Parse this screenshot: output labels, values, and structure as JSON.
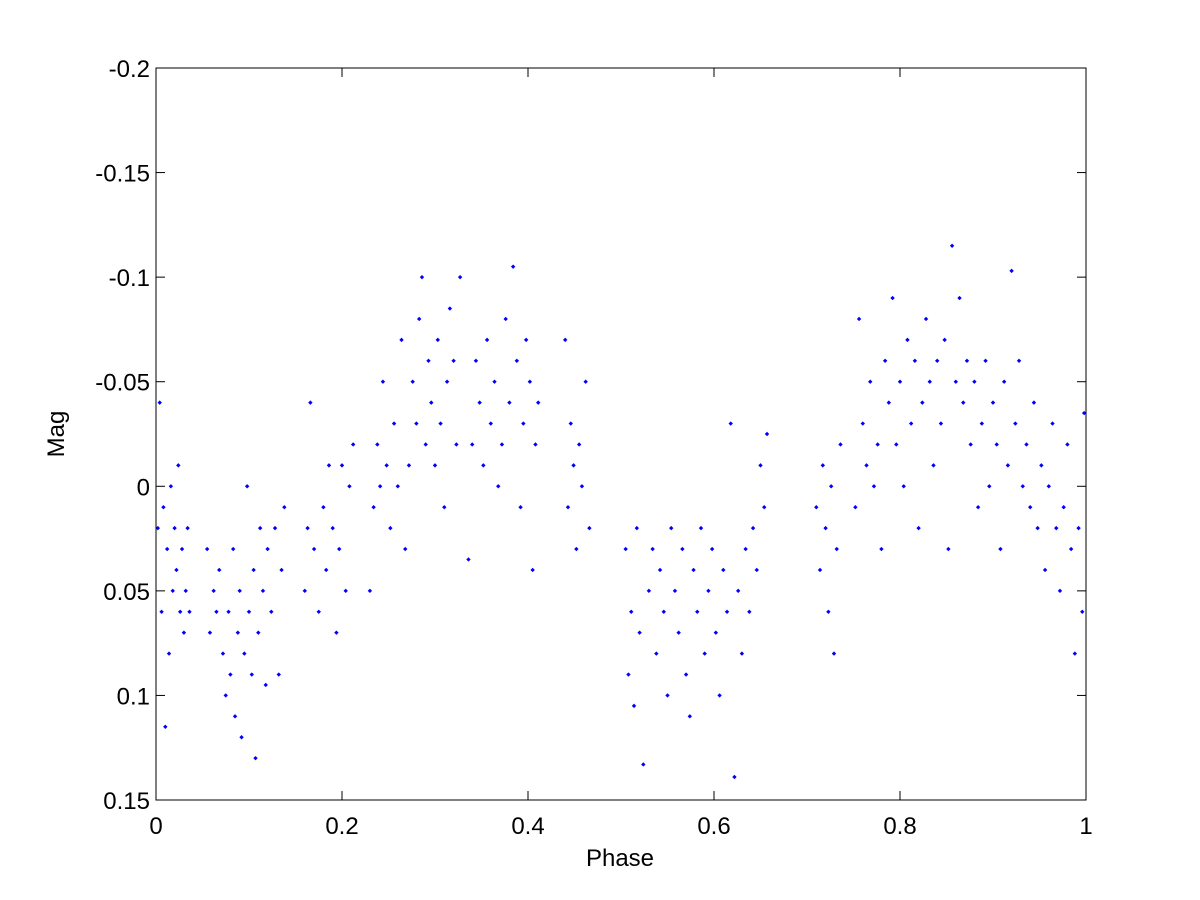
{
  "chart_data": {
    "type": "scatter",
    "xlabel": "Phase",
    "ylabel": "Mag",
    "color": "#0000ff",
    "y_reversed": true,
    "xlim": [
      0,
      1
    ],
    "ylim": [
      -0.2,
      0.15
    ],
    "xticks": [
      0,
      0.2,
      0.4,
      0.6,
      0.8,
      1
    ],
    "yticks": [
      -0.2,
      -0.15,
      -0.1,
      -0.05,
      0,
      0.05,
      0.1,
      0.15
    ],
    "x": [
      0.002,
      0.004,
      0.006,
      0.008,
      0.01,
      0.012,
      0.014,
      0.016,
      0.018,
      0.02,
      0.022,
      0.024,
      0.026,
      0.028,
      0.03,
      0.032,
      0.034,
      0.036,
      0.055,
      0.058,
      0.062,
      0.065,
      0.068,
      0.072,
      0.075,
      0.078,
      0.08,
      0.083,
      0.085,
      0.088,
      0.09,
      0.092,
      0.095,
      0.098,
      0.1,
      0.103,
      0.105,
      0.107,
      0.11,
      0.112,
      0.115,
      0.118,
      0.12,
      0.124,
      0.128,
      0.132,
      0.135,
      0.138,
      0.16,
      0.163,
      0.166,
      0.17,
      0.175,
      0.18,
      0.183,
      0.186,
      0.19,
      0.194,
      0.197,
      0.2,
      0.204,
      0.208,
      0.212,
      0.23,
      0.234,
      0.238,
      0.241,
      0.244,
      0.248,
      0.252,
      0.256,
      0.26,
      0.264,
      0.268,
      0.272,
      0.276,
      0.28,
      0.283,
      0.286,
      0.29,
      0.293,
      0.296,
      0.3,
      0.303,
      0.306,
      0.31,
      0.313,
      0.316,
      0.32,
      0.323,
      0.327,
      0.336,
      0.34,
      0.344,
      0.348,
      0.352,
      0.356,
      0.36,
      0.364,
      0.368,
      0.372,
      0.376,
      0.38,
      0.384,
      0.388,
      0.392,
      0.395,
      0.398,
      0.402,
      0.405,
      0.408,
      0.411,
      0.44,
      0.443,
      0.446,
      0.449,
      0.452,
      0.455,
      0.458,
      0.462,
      0.466,
      0.505,
      0.508,
      0.511,
      0.514,
      0.517,
      0.52,
      0.524,
      0.53,
      0.534,
      0.538,
      0.542,
      0.546,
      0.55,
      0.554,
      0.558,
      0.562,
      0.566,
      0.57,
      0.574,
      0.578,
      0.582,
      0.586,
      0.59,
      0.594,
      0.598,
      0.602,
      0.606,
      0.61,
      0.614,
      0.618,
      0.622,
      0.626,
      0.63,
      0.634,
      0.638,
      0.642,
      0.646,
      0.65,
      0.654,
      0.657,
      0.71,
      0.714,
      0.717,
      0.72,
      0.723,
      0.726,
      0.729,
      0.732,
      0.736,
      0.752,
      0.756,
      0.76,
      0.764,
      0.768,
      0.772,
      0.776,
      0.78,
      0.784,
      0.788,
      0.792,
      0.796,
      0.8,
      0.804,
      0.808,
      0.812,
      0.816,
      0.82,
      0.824,
      0.828,
      0.832,
      0.836,
      0.84,
      0.844,
      0.848,
      0.852,
      0.856,
      0.86,
      0.864,
      0.868,
      0.872,
      0.876,
      0.88,
      0.884,
      0.888,
      0.892,
      0.896,
      0.9,
      0.904,
      0.908,
      0.912,
      0.916,
      0.92,
      0.924,
      0.928,
      0.932,
      0.936,
      0.94,
      0.944,
      0.948,
      0.952,
      0.956,
      0.96,
      0.964,
      0.968,
      0.972,
      0.976,
      0.98,
      0.984,
      0.988,
      0.992,
      0.996,
      0.998
    ],
    "values": [
      0.02,
      -0.04,
      0.06,
      0.01,
      0.115,
      0.03,
      0.08,
      0.0,
      0.05,
      0.02,
      0.04,
      -0.01,
      0.06,
      0.03,
      0.07,
      0.05,
      0.02,
      0.06,
      0.03,
      0.07,
      0.05,
      0.06,
      0.04,
      0.08,
      0.1,
      0.06,
      0.09,
      0.03,
      0.11,
      0.07,
      0.05,
      0.12,
      0.08,
      0.0,
      0.06,
      0.09,
      0.04,
      0.13,
      0.07,
      0.02,
      0.05,
      0.095,
      0.03,
      0.06,
      0.02,
      0.09,
      0.04,
      0.01,
      0.05,
      0.02,
      -0.04,
      0.03,
      0.06,
      0.01,
      0.04,
      -0.01,
      0.02,
      0.07,
      0.03,
      -0.01,
      0.05,
      0.0,
      -0.02,
      0.05,
      0.01,
      -0.02,
      0.0,
      -0.05,
      -0.01,
      0.02,
      -0.03,
      0.0,
      -0.07,
      0.03,
      -0.01,
      -0.05,
      -0.03,
      -0.08,
      -0.1,
      -0.02,
      -0.06,
      -0.04,
      -0.01,
      -0.07,
      -0.03,
      0.01,
      -0.05,
      -0.085,
      -0.06,
      -0.02,
      -0.1,
      0.035,
      -0.02,
      -0.06,
      -0.04,
      -0.01,
      -0.07,
      -0.03,
      -0.05,
      0.0,
      -0.02,
      -0.08,
      -0.04,
      -0.105,
      -0.06,
      0.01,
      -0.03,
      -0.07,
      -0.05,
      0.04,
      -0.02,
      -0.04,
      -0.07,
      0.01,
      -0.03,
      -0.01,
      0.03,
      -0.02,
      0.0,
      -0.05,
      0.02,
      0.03,
      0.09,
      0.06,
      0.105,
      0.02,
      0.07,
      0.133,
      0.05,
      0.03,
      0.08,
      0.04,
      0.06,
      0.1,
      0.02,
      0.05,
      0.07,
      0.03,
      0.09,
      0.11,
      0.04,
      0.06,
      0.02,
      0.08,
      0.05,
      0.03,
      0.07,
      0.1,
      0.04,
      0.06,
      -0.03,
      0.139,
      0.05,
      0.08,
      0.03,
      0.06,
      0.02,
      0.04,
      -0.01,
      0.01,
      -0.025,
      0.01,
      0.04,
      -0.01,
      0.02,
      0.06,
      0.0,
      0.08,
      0.03,
      -0.02,
      0.01,
      -0.08,
      -0.03,
      -0.01,
      -0.05,
      0.0,
      -0.02,
      0.03,
      -0.06,
      -0.04,
      -0.09,
      -0.02,
      -0.05,
      0.0,
      -0.07,
      -0.03,
      -0.06,
      0.02,
      -0.04,
      -0.08,
      -0.05,
      -0.01,
      -0.06,
      -0.03,
      -0.07,
      0.03,
      -0.115,
      -0.05,
      -0.09,
      -0.04,
      -0.06,
      -0.02,
      -0.05,
      0.01,
      -0.03,
      -0.06,
      0.0,
      -0.04,
      -0.02,
      0.03,
      -0.05,
      -0.01,
      -0.103,
      -0.03,
      -0.06,
      0.0,
      -0.02,
      0.01,
      -0.04,
      0.02,
      -0.01,
      0.04,
      0.0,
      -0.03,
      0.02,
      0.05,
      0.01,
      -0.02,
      0.03,
      0.08,
      0.02,
      0.06,
      -0.035
    ]
  }
}
